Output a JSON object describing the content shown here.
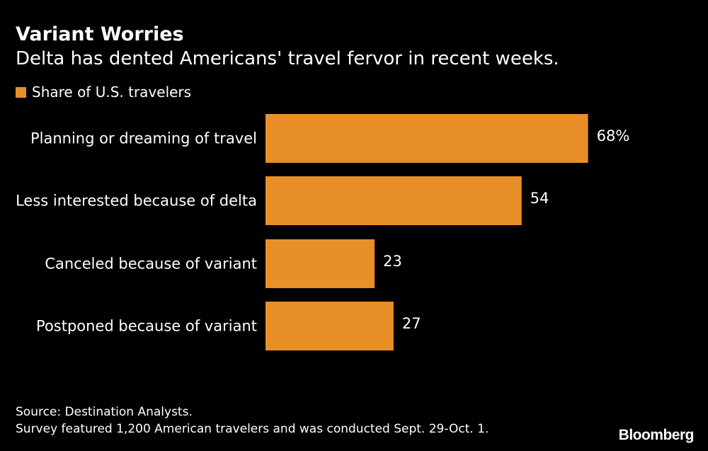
{
  "header": {
    "title": "Variant Worries",
    "subtitle": "Delta has dented Americans' travel fervor in recent weeks."
  },
  "legend": {
    "label": "Share of U.S. travelers"
  },
  "colors": {
    "bar": "#e88f28",
    "background": "#000000",
    "text": "#ffffff"
  },
  "chart_data": {
    "type": "bar",
    "orientation": "horizontal",
    "categories": [
      "Planning or dreaming of travel",
      "Less interested because of delta",
      "Canceled because of variant",
      "Postponed because of variant"
    ],
    "series": [
      {
        "name": "Share of U.S. travelers",
        "values": [
          68,
          54,
          23,
          27
        ]
      }
    ],
    "value_labels": [
      "68%",
      "54",
      "23",
      "27"
    ],
    "xlim": [
      0,
      100
    ],
    "grid": false,
    "legend_placement": "top-left"
  },
  "footer": {
    "source_line1": "Source: Destination Analysts.",
    "source_line2": "Survey featured 1,200 American travelers and was conducted Sept. 29-Oct. 1.",
    "brand": "Bloomberg"
  }
}
